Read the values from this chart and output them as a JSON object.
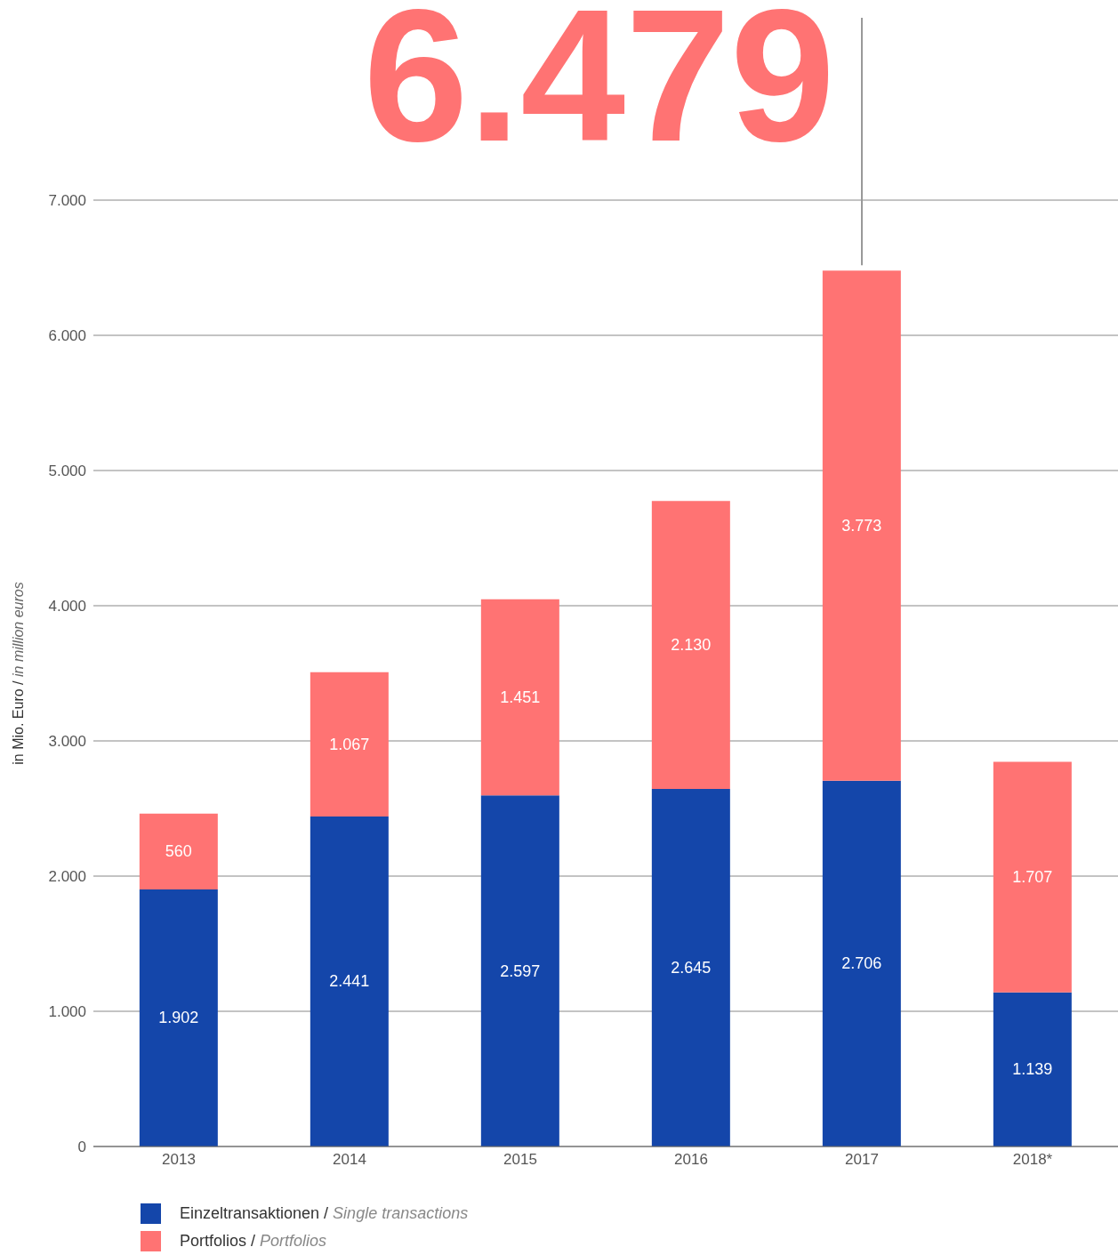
{
  "chart_data": {
    "type": "bar",
    "stacked": true,
    "categories": [
      "2013",
      "2014",
      "2015",
      "2016",
      "2017",
      "2018*"
    ],
    "series": [
      {
        "name": "Einzeltransaktionen / Single transactions",
        "color": "#1446aa",
        "values": [
          1902,
          2441,
          2597,
          2645,
          2706,
          1139
        ],
        "value_labels": [
          "1.902",
          "2.441",
          "2.597",
          "2.645",
          "2.706",
          "1.139"
        ]
      },
      {
        "name": "Portfolios / Portfolios",
        "color": "#ff7373",
        "values": [
          560,
          1067,
          1451,
          2130,
          3773,
          1707
        ],
        "value_labels": [
          "560",
          "1.067",
          "1.451",
          "2.130",
          "3.773",
          "1.707"
        ]
      }
    ],
    "ylabel": "in Mio. Euro / in million euros",
    "ylim": [
      0,
      7000
    ],
    "yticks": [
      0,
      {
        "value": 1000,
        "label": "1.000"
      },
      {
        "value": 2000,
        "label": "2.000"
      },
      {
        "value": 3000,
        "label": "3.000"
      },
      {
        "value": 4000,
        "label": "4.000"
      },
      {
        "value": 5000,
        "label": "5.000"
      },
      {
        "value": 6000,
        "label": "6.000"
      },
      {
        "value": 7000,
        "label": "7.000"
      }
    ],
    "grid": "y",
    "legend": "bottom left",
    "annotations": [
      {
        "text": "6.479",
        "x": "2017",
        "y": 6479
      }
    ]
  }
}
